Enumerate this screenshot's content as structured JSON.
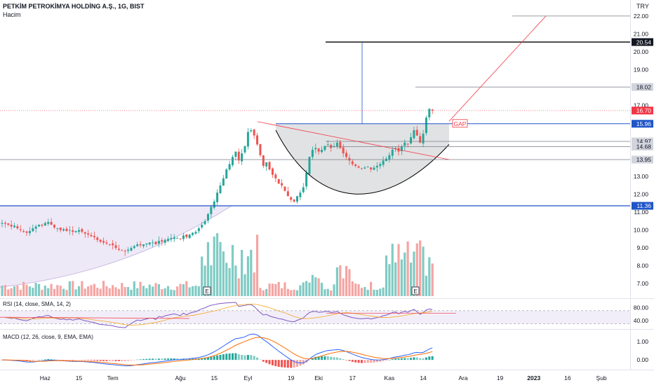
{
  "header": {
    "title": "PETKİM PETROKİMYA HOLDİNG A.Ş., 1G, BIST",
    "volume_label": "Hacim",
    "currency": "TRY"
  },
  "colors": {
    "up": "#26a69a",
    "down": "#ef5350",
    "up_vol": "#80cbc4",
    "down_vol": "#f5a5a3",
    "blue": "#1e55c8",
    "gray": "#787b86",
    "rsi": "#7e57c2",
    "macd": "#2962ff",
    "signal": "#ff6d00",
    "black": "#000000",
    "price": "#f23645"
  },
  "chart_data": [
    {
      "type": "candlestick",
      "pane": "price",
      "ylim": [
        6.3,
        22.7
      ],
      "y_ticks": [
        "7.00",
        "8.00",
        "9.00",
        "10.00",
        "11.00",
        "12.00",
        "13.00",
        "14.00",
        "15.00",
        "16.00",
        "17.00",
        "18.00",
        "19.00",
        "20.00",
        "21.00",
        "22.00"
      ],
      "x_ticks": [
        {
          "label": "Haz",
          "bar": 14,
          "bold": false
        },
        {
          "label": "15",
          "bar": 25,
          "bold": false
        },
        {
          "label": "Tem",
          "bar": 36,
          "bold": false
        },
        {
          "label": "Ağu",
          "bar": 58,
          "bold": false
        },
        {
          "label": "15",
          "bar": 69,
          "bold": false
        },
        {
          "label": "Eyl",
          "bar": 80,
          "bold": false
        },
        {
          "label": "19",
          "bar": 94,
          "bold": false
        },
        {
          "label": "Eki",
          "bar": 103,
          "bold": false
        },
        {
          "label": "17",
          "bar": 114,
          "bold": false
        },
        {
          "label": "Kas",
          "bar": 126,
          "bold": false
        },
        {
          "label": "14",
          "bar": 137,
          "bold": false
        },
        {
          "label": "Ara",
          "bar": 150,
          "bold": false
        },
        {
          "label": "19",
          "bar": 162,
          "bold": false
        },
        {
          "label": "2023",
          "bar": 173,
          "bold": true
        },
        {
          "label": "16",
          "bar": 184,
          "bold": false
        },
        {
          "label": "Şub",
          "bar": 195,
          "bold": false
        }
      ],
      "close": [
        10.4,
        10.35,
        10.3,
        10.2,
        10.25,
        10.1,
        10.0,
        9.9,
        9.85,
        9.95,
        10.1,
        10.2,
        10.3,
        10.25,
        10.4,
        10.45,
        10.3,
        10.15,
        10.1,
        10.0,
        10.05,
        9.95,
        10.0,
        9.9,
        9.95,
        10.0,
        9.9,
        9.8,
        9.75,
        9.65,
        9.6,
        9.45,
        9.35,
        9.3,
        9.25,
        9.2,
        9.15,
        9.0,
        8.9,
        8.85,
        8.8,
        8.9,
        9.0,
        9.1,
        9.2,
        9.15,
        9.2,
        9.25,
        9.3,
        9.3,
        9.2,
        9.4,
        9.35,
        9.45,
        9.5,
        9.55,
        9.6,
        9.55,
        9.5,
        9.7,
        9.6,
        9.75,
        9.85,
        9.9,
        10.1,
        10.3,
        10.5,
        10.9,
        11.3,
        11.6,
        12.1,
        12.5,
        12.9,
        13.4,
        13.7,
        14.1,
        14.4,
        13.9,
        14.3,
        14.7,
        15.5,
        15.6,
        15.3,
        14.8,
        14.2,
        13.6,
        13.8,
        13.4,
        13.1,
        12.9,
        12.6,
        12.5,
        12.2,
        11.9,
        11.7,
        11.6,
        11.9,
        12.1,
        12.4,
        13.2,
        14.1,
        14.5,
        14.6,
        14.4,
        14.5,
        14.7,
        14.8,
        14.6,
        14.7,
        14.9,
        14.6,
        14.3,
        14.1,
        13.9,
        13.7,
        13.6,
        13.5,
        13.45,
        13.5,
        13.55,
        13.4,
        13.5,
        13.6,
        13.7,
        13.9,
        14.0,
        14.2,
        14.5,
        14.6,
        14.4,
        14.7,
        14.9,
        14.8,
        15.2,
        15.6,
        15.3,
        14.9,
        15.4,
        16.3,
        16.8,
        16.7
      ],
      "annotations": {
        "gap_label": "GAP",
        "event_marker": "E"
      },
      "price_labels": [
        {
          "text": "20.54",
          "value": 20.54,
          "style": "black"
        },
        {
          "text": "18.02",
          "value": 18.02,
          "style": "gray"
        },
        {
          "text": "16.70",
          "value": 16.7,
          "style": "red"
        },
        {
          "text": "15.96",
          "value": 15.96,
          "style": "blue"
        },
        {
          "text": "14.97",
          "value": 14.97,
          "style": "gray"
        },
        {
          "text": "14.68",
          "value": 14.68,
          "style": "gray"
        },
        {
          "text": "13.95",
          "value": 13.95,
          "style": "gray"
        },
        {
          "text": "11.36",
          "value": 11.36,
          "style": "blue"
        }
      ]
    },
    {
      "type": "line",
      "pane": "rsi",
      "label": "RSI (14, close, SMA, 14, 2)",
      "ylim": [
        20,
        100
      ],
      "y_ticks": [
        "40.00",
        "80.00"
      ]
    },
    {
      "type": "histogram+line",
      "pane": "macd",
      "label": "MACD (12, 26, close, 9, EMA, EMA)",
      "ylim": [
        -0.45,
        1.45
      ],
      "y_ticks": [
        "0.00",
        "1.00"
      ]
    }
  ]
}
